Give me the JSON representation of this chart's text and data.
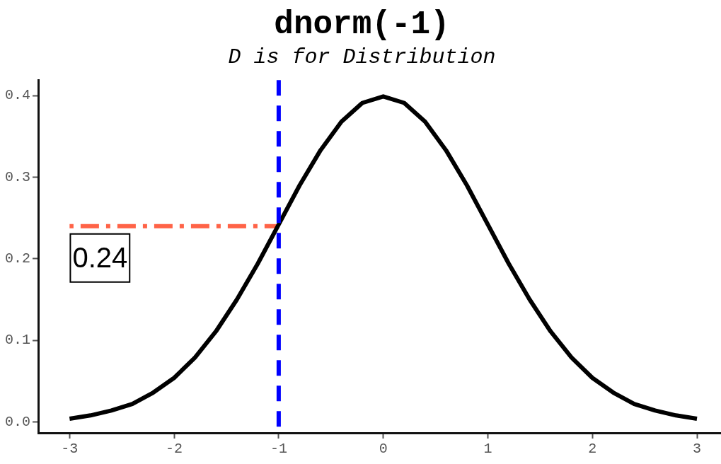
{
  "chart_data": {
    "type": "line",
    "title": "dnorm(-1)",
    "subtitle": "D is for Distribution",
    "xlim": [
      -3.3,
      3.23
    ],
    "xticks": [
      -3,
      -2,
      -1,
      0,
      1,
      2,
      3
    ],
    "ylim": [
      -0.0134,
      0.419
    ],
    "yticks": [
      {
        "value": 0,
        "label": "0.0"
      },
      0.1,
      0.2,
      0.3,
      0.4
    ],
    "series": [
      {
        "color": "#000000",
        "x": [
          -3,
          -2.8,
          -2.6,
          -2.4,
          -2.2,
          -2,
          -1.8,
          -1.6,
          -1.4,
          -1.2,
          -1,
          -0.8,
          -0.6,
          -0.4,
          -0.2,
          0,
          0.2,
          0.4,
          0.6,
          0.8,
          1,
          1.2,
          1.4,
          1.6,
          1.8,
          2,
          2.2,
          2.4,
          2.6,
          2.8,
          3
        ],
        "values": [
          0.004,
          0.008,
          0.014,
          0.022,
          0.036,
          0.054,
          0.079,
          0.111,
          0.15,
          0.194,
          0.242,
          0.29,
          0.333,
          0.368,
          0.391,
          0.399,
          0.391,
          0.368,
          0.333,
          0.29,
          0.242,
          0.194,
          0.15,
          0.111,
          0.079,
          0.054,
          0.036,
          0.022,
          0.014,
          0.008,
          0.004
        ],
        "line_style": "solid"
      },
      {
        "color": "#ff6347",
        "x": [
          -3,
          -1
        ],
        "values": [
          0.24,
          0.24
        ],
        "value_labels": [
          "0.24",
          null
        ],
        "line_style": "dashed"
      }
    ],
    "ref_lines": [
      {
        "axis": "x",
        "value": -1,
        "color": "#0000ff",
        "line_style": "dashed"
      }
    ],
    "marker": "none",
    "legend": false,
    "grid": false
  }
}
